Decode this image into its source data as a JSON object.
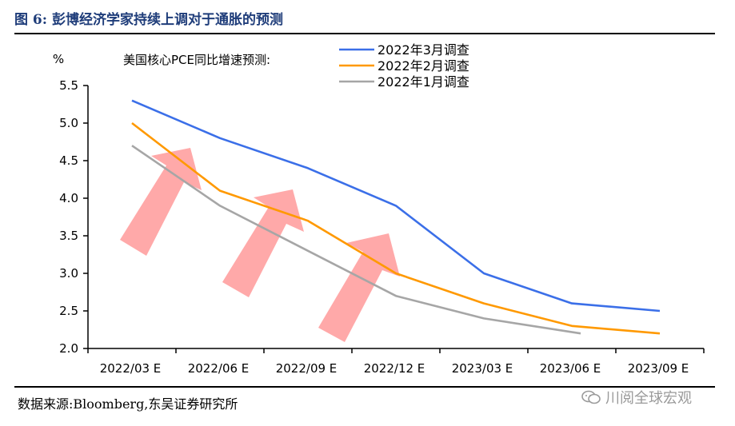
{
  "figure_title": "图 6:  彭博经济学家持续上调对于通胀的预测",
  "source": "数据来源:Bloomberg,东吴证券研究所",
  "watermark": "川阅全球宏观",
  "chart_data": {
    "type": "line",
    "title": "美国核心PCE同比增速预测:",
    "ylabel": "%",
    "xlabel": "",
    "categories": [
      "2022/03 E",
      "2022/06 E",
      "2022/09 E",
      "2022/12 E",
      "2023/03 E",
      "2023/06 E",
      "2023/09 E"
    ],
    "ylim": [
      2.0,
      5.5
    ],
    "yticks": [
      "2.0",
      "2.5",
      "3.0",
      "3.5",
      "4.0",
      "4.5",
      "5.0",
      "5.5"
    ],
    "legend_position": "top-right",
    "grid": false,
    "series": [
      {
        "name": "2022年3月调查",
        "color": "#3b6fe8",
        "values": [
          5.3,
          4.8,
          4.4,
          3.9,
          3.0,
          2.6,
          2.5
        ]
      },
      {
        "name": "2022年2月调查",
        "color": "#ff9900",
        "values": [
          5.0,
          4.1,
          3.7,
          3.0,
          2.6,
          2.3,
          2.2
        ]
      },
      {
        "name": "2022年1月调查",
        "color": "#a6a6a6",
        "values": [
          4.7,
          3.9,
          3.3,
          2.7,
          2.4,
          2.2,
          null
        ]
      }
    ],
    "annotations": {
      "arrow_color": "#ff9a9a",
      "arrow_count": 3
    }
  }
}
